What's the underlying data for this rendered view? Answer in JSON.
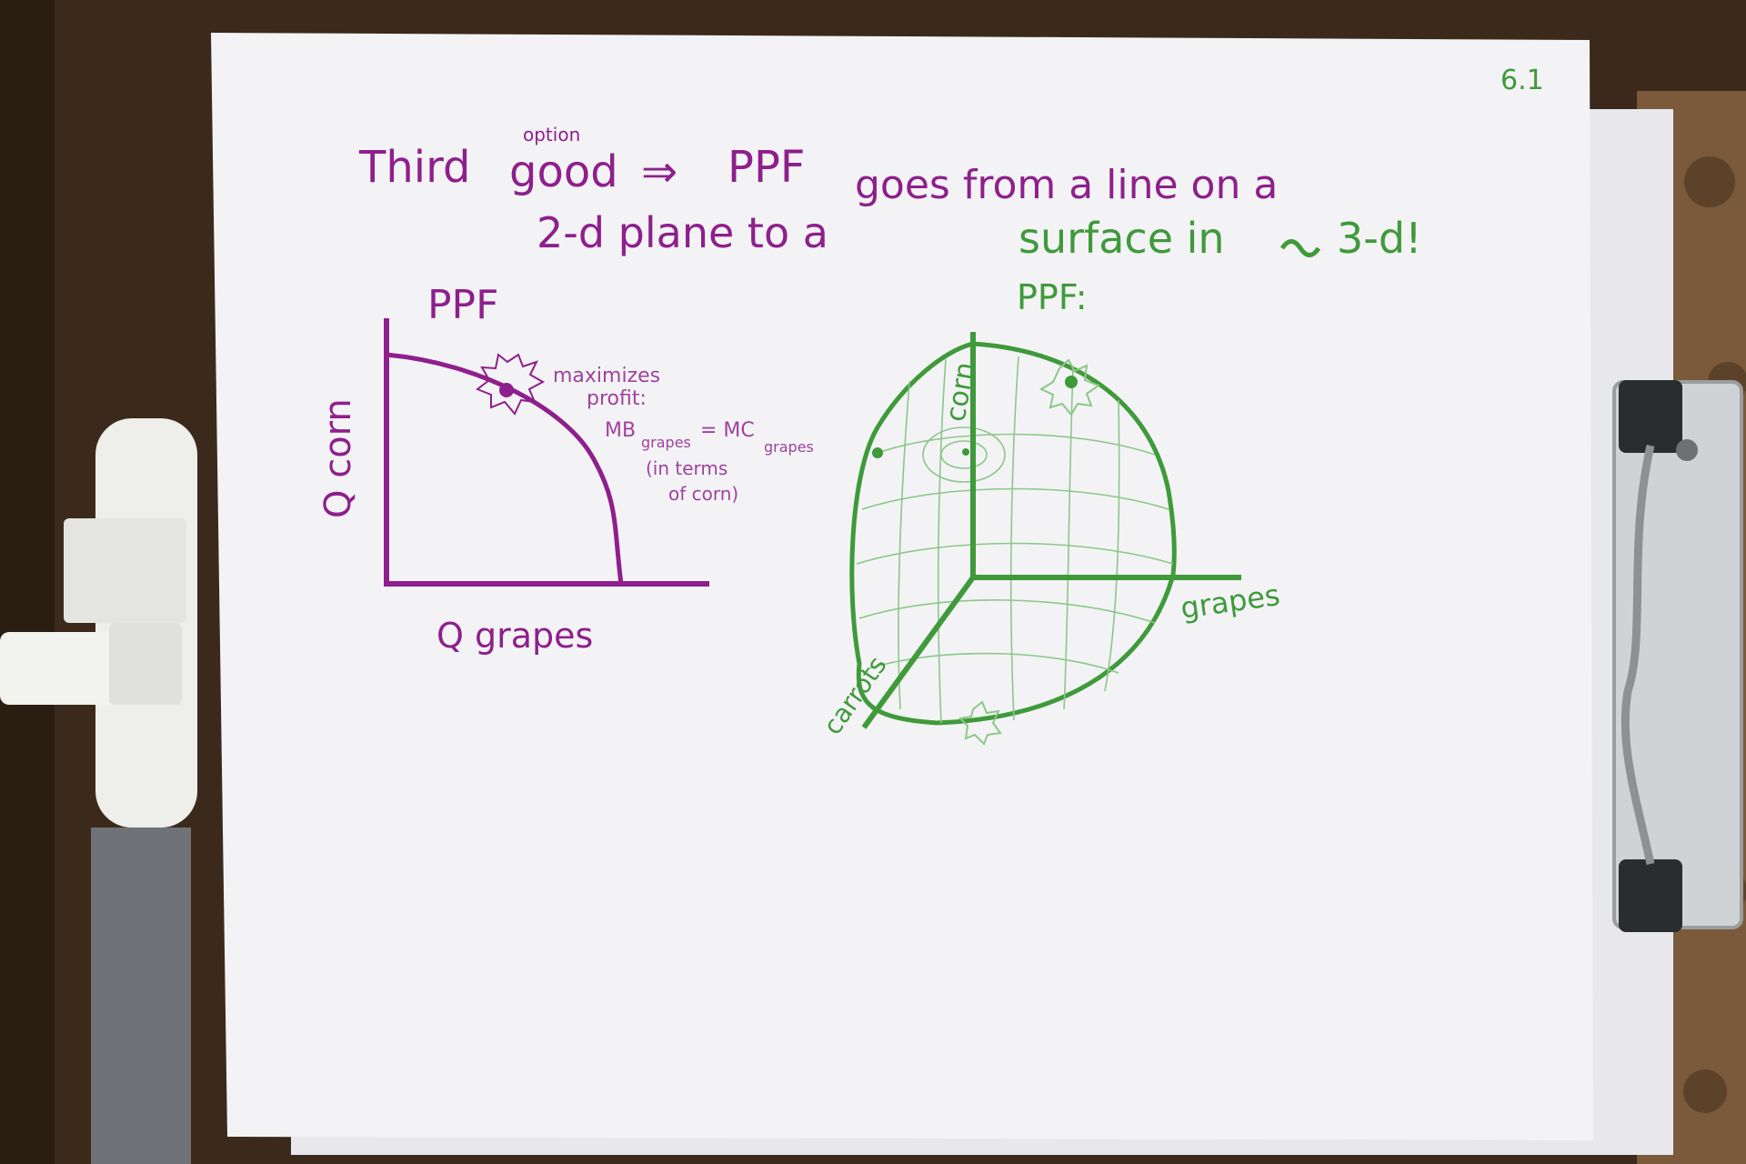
{
  "page_number": "6.1",
  "heading": {
    "line1_a": "Third",
    "line1_caret": "option",
    "line1_b": "good",
    "line1_arrow": "⇒",
    "line1_c": "PPF",
    "line1_d": "goes from  a  line  on  a",
    "line2_a": "2-d  plane   to  a",
    "line2_b": "surface  in",
    "line2_c": "3-d!"
  },
  "left_graph": {
    "title": "PPF",
    "y_label": "Q corn",
    "x_label": "Q grapes",
    "note_1": "maximizes",
    "note_2": "profit:",
    "note_3_mb": "MB",
    "note_3_sub1": "grapes",
    "note_3_eq": "= MC",
    "note_3_sub2": "grapes",
    "note_4": "(in terms",
    "note_5": "of corn)"
  },
  "right_graph": {
    "title": "PPF:",
    "axis_up": "corn",
    "axis_right": "grapes",
    "axis_down": "carrots"
  },
  "colors": {
    "desk": "#3a2a1c",
    "paper": "#f3f3f6",
    "purple_ink": "#8e1f8c",
    "green_ink": "#3f9a3a",
    "green_light": "#8cc787",
    "clip_metal": "#b8bcbf",
    "clip_dark": "#2a2d2f"
  }
}
